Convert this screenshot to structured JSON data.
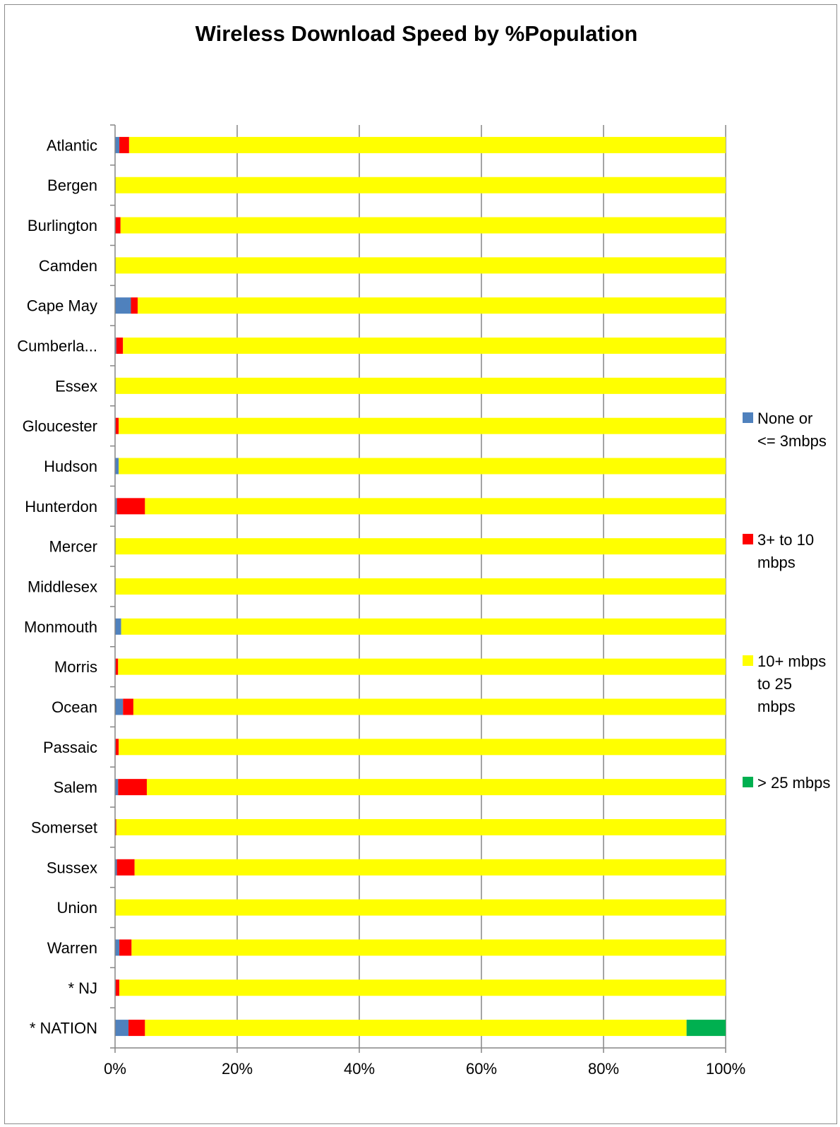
{
  "chart_data": {
    "type": "bar",
    "orientation": "horizontal",
    "stacked": "percent",
    "title": "Wireless Download Speed by %Population",
    "xlim": [
      0,
      100
    ],
    "x_ticks": [
      "0%",
      "20%",
      "40%",
      "60%",
      "80%",
      "100%"
    ],
    "grid": "vertical",
    "legend_position": "right",
    "categories": [
      "Atlantic",
      "Bergen",
      "Burlington",
      "Camden",
      "Cape May",
      "Cumberla...",
      "Essex",
      "Gloucester",
      "Hudson",
      "Hunterdon",
      "Mercer",
      "Middlesex",
      "Monmouth",
      "Morris",
      "Ocean",
      "Passaic",
      "Salem",
      "Somerset",
      "Sussex",
      "Union",
      "Warren",
      "* NJ",
      "* NATION"
    ],
    "series": [
      {
        "name": "None or <= 3mbps",
        "legend_lines": [
          "None or",
          "<= 3mbps"
        ],
        "color": "#4F81BD",
        "values": [
          0.7,
          0,
          0,
          0,
          2.6,
          0.2,
          0,
          0.1,
          0.6,
          0.3,
          0,
          0,
          1,
          0.1,
          1.3,
          0.1,
          0.5,
          0,
          0.3,
          0,
          0.7,
          0.1,
          2.2
        ]
      },
      {
        "name": "3+ to 10 mbps",
        "legend_lines": [
          "3+ to 10",
          "mbps"
        ],
        "color": "#FF0000",
        "values": [
          1.6,
          0,
          0.9,
          0,
          1.1,
          1.1,
          0,
          0.5,
          0,
          4.6,
          0,
          0,
          0,
          0.4,
          1.7,
          0.5,
          4.7,
          0.2,
          2.9,
          0,
          2,
          0.6,
          2.7
        ]
      },
      {
        "name": "10+ mbps to 25 mbps",
        "legend_lines": [
          "10+ mbps",
          "to 25",
          "mbps"
        ],
        "color": "#FFFF00",
        "values": [
          97.7,
          100,
          99.1,
          100,
          96.3,
          98.7,
          100,
          99.4,
          99.4,
          95.1,
          100,
          100,
          99,
          99.5,
          97,
          99.4,
          94.8,
          99.8,
          96.8,
          100,
          97.3,
          99.3,
          88.7
        ]
      },
      {
        "name": "> 25 mbps",
        "legend_lines": [
          "> 25 mbps"
        ],
        "color": "#00B050",
        "values": [
          0,
          0,
          0,
          0,
          0,
          0,
          0,
          0,
          0,
          0,
          0,
          0,
          0,
          0,
          0,
          0,
          0,
          0,
          0,
          0,
          0,
          0,
          6.4
        ]
      }
    ]
  }
}
